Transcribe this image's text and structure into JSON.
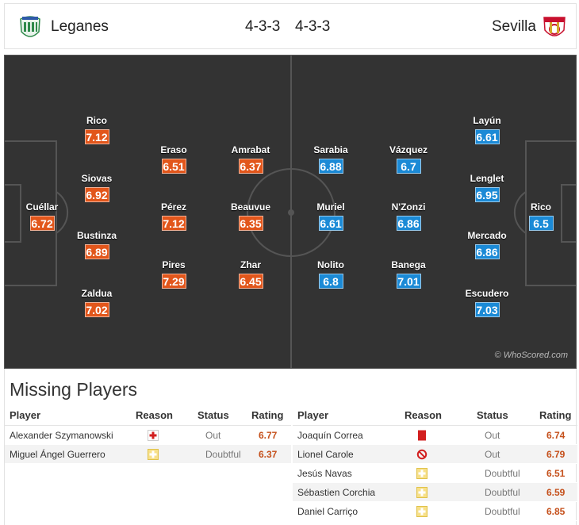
{
  "header": {
    "home_team": "Leganes",
    "home_formation": "4-3-3",
    "away_formation": "4-3-3",
    "away_team": "Sevilla",
    "home_crest_icon": "leganes-crest",
    "away_crest_icon": "sevilla-crest"
  },
  "colors": {
    "home_rating_bg": "#e2561b",
    "away_rating_bg": "#1b8ad6",
    "pitch": "#333333",
    "missing_rating_text": "#c5501b"
  },
  "pitch": {
    "watermark": "© WhoScored.com",
    "home_players": [
      {
        "name": "Cuéllar",
        "rating": "6.72"
      },
      {
        "name": "Rico",
        "rating": "7.12"
      },
      {
        "name": "Siovas",
        "rating": "6.92"
      },
      {
        "name": "Bustinza",
        "rating": "6.89"
      },
      {
        "name": "Zaldua",
        "rating": "7.02"
      },
      {
        "name": "Eraso",
        "rating": "6.51"
      },
      {
        "name": "Pérez",
        "rating": "7.12"
      },
      {
        "name": "Pires",
        "rating": "7.29"
      },
      {
        "name": "Amrabat",
        "rating": "6.37"
      },
      {
        "name": "Beauvue",
        "rating": "6.35"
      },
      {
        "name": "Zhar",
        "rating": "6.45"
      }
    ],
    "away_players": [
      {
        "name": "Sarabia",
        "rating": "6.88"
      },
      {
        "name": "Muriel",
        "rating": "6.61"
      },
      {
        "name": "Nolito",
        "rating": "6.8"
      },
      {
        "name": "Vázquez",
        "rating": "6.7"
      },
      {
        "name": "N'Zonzi",
        "rating": "6.86"
      },
      {
        "name": "Banega",
        "rating": "7.01"
      },
      {
        "name": "Layún",
        "rating": "6.61"
      },
      {
        "name": "Lenglet",
        "rating": "6.95"
      },
      {
        "name": "Mercado",
        "rating": "6.86"
      },
      {
        "name": "Escudero",
        "rating": "7.03"
      },
      {
        "name": "Rico",
        "rating": "6.5"
      }
    ]
  },
  "missing": {
    "title": "Missing Players",
    "columns": {
      "player": "Player",
      "reason": "Reason",
      "status": "Status",
      "rating": "Rating"
    },
    "home": [
      {
        "player": "Alexander Szymanowski",
        "reason_icon": "injury-icon",
        "status": "Out",
        "rating": "6.77"
      },
      {
        "player": "Miguel Ángel Guerrero",
        "reason_icon": "doubtful-icon",
        "status": "Doubtful",
        "rating": "6.37"
      }
    ],
    "away": [
      {
        "player": "Joaquín Correa",
        "reason_icon": "red-card-icon",
        "status": "Out",
        "rating": "6.74"
      },
      {
        "player": "Lionel Carole",
        "reason_icon": "unavailable-icon",
        "status": "Out",
        "rating": "6.79"
      },
      {
        "player": "Jesús Navas",
        "reason_icon": "doubtful-icon",
        "status": "Doubtful",
        "rating": "6.51"
      },
      {
        "player": "Sébastien Corchia",
        "reason_icon": "doubtful-icon",
        "status": "Doubtful",
        "rating": "6.59"
      },
      {
        "player": "Daniel Carriço",
        "reason_icon": "doubtful-icon",
        "status": "Doubtful",
        "rating": "6.85"
      }
    ]
  }
}
